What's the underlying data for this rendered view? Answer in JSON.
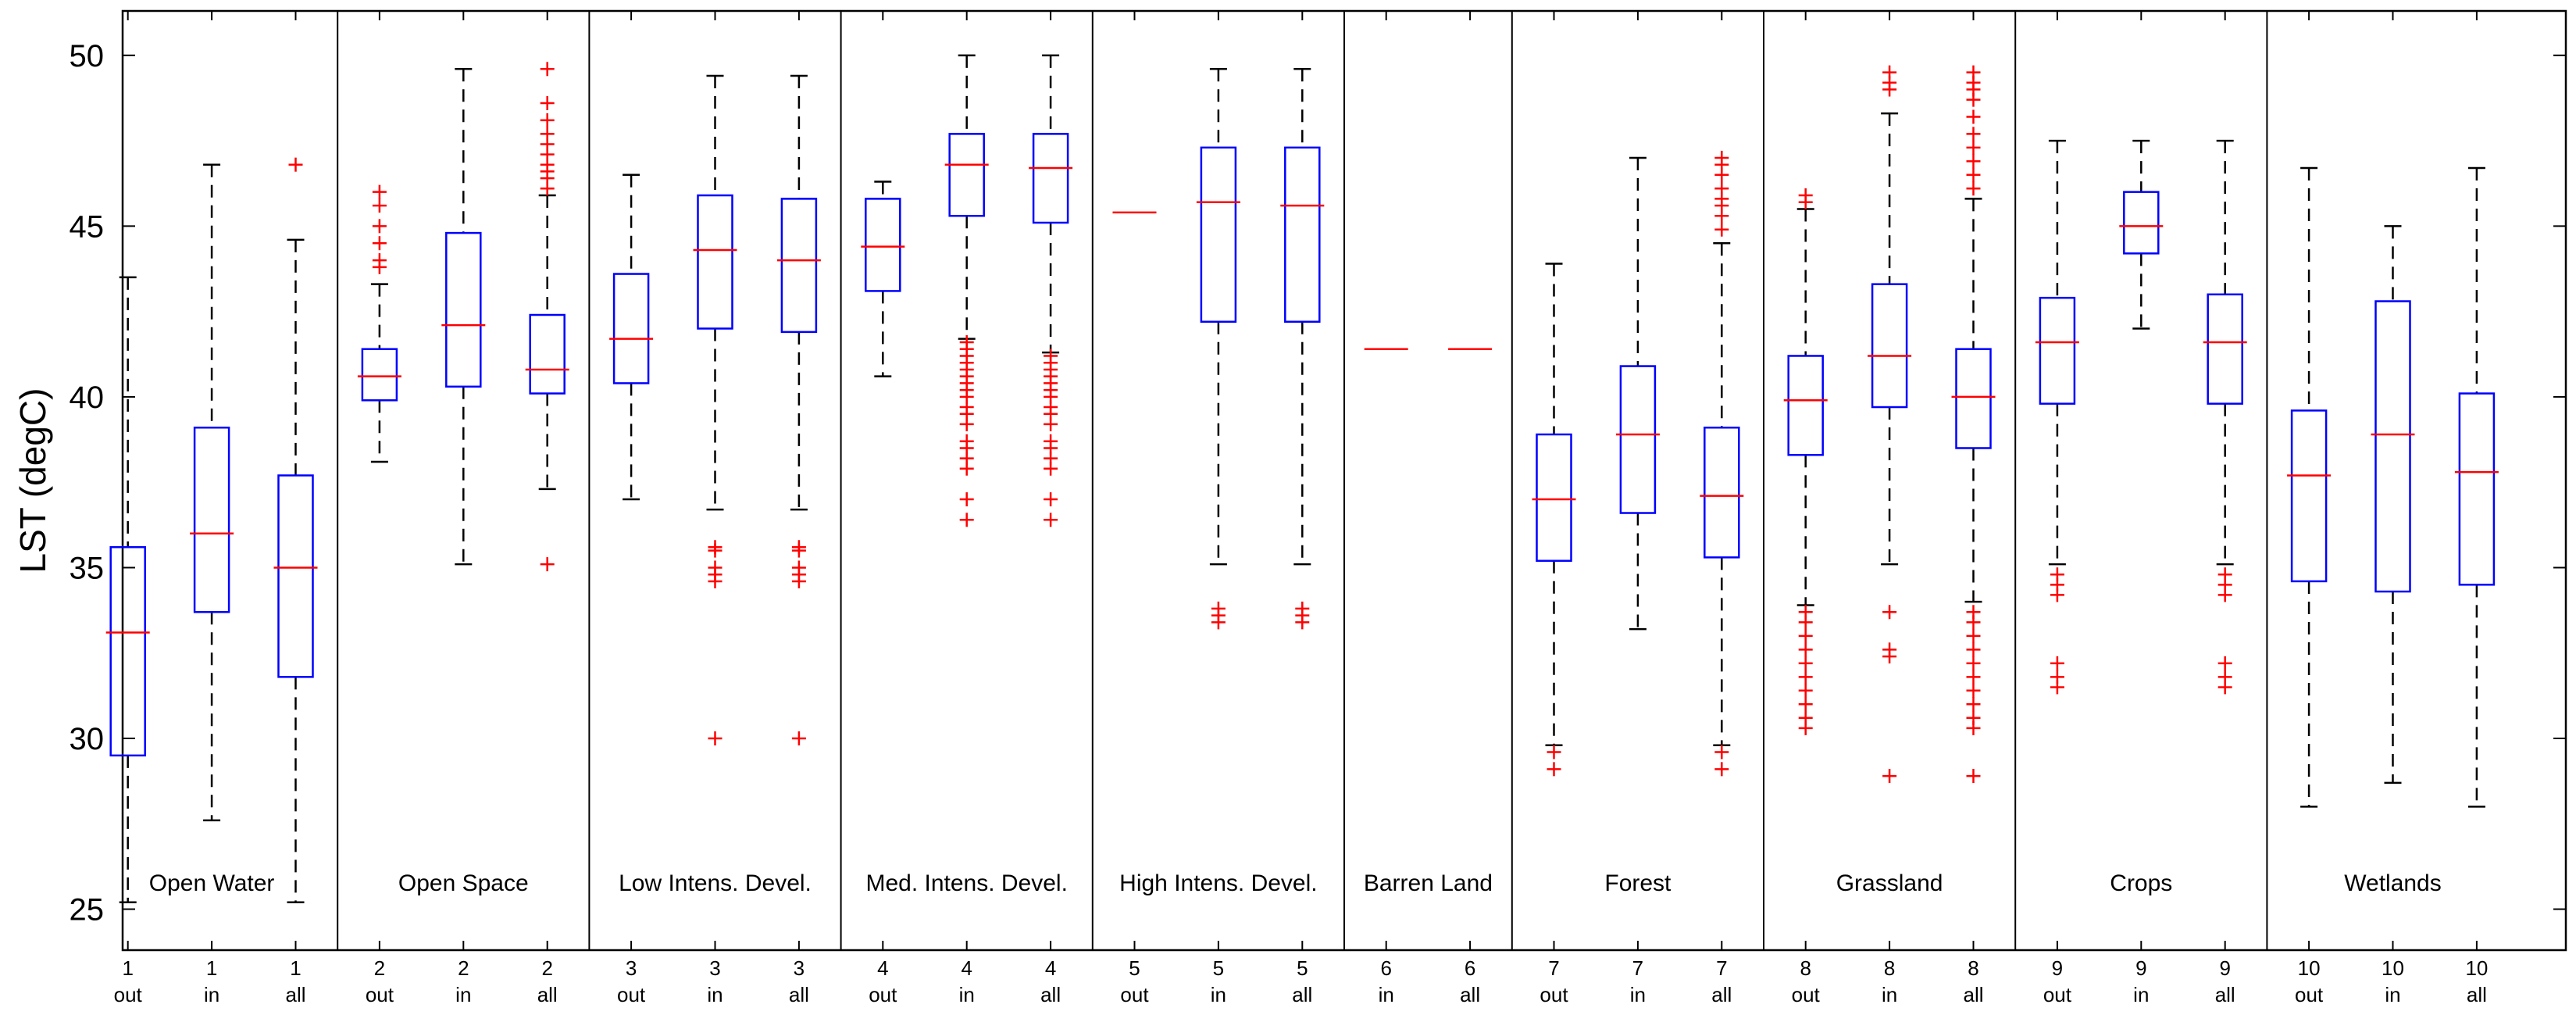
{
  "chart_data": {
    "type": "boxplot",
    "ylabel": "LST (degC)",
    "ylim": [
      23.8,
      51.3
    ],
    "yticks": [
      25,
      30,
      35,
      40,
      45,
      50
    ],
    "colors": {
      "box": "#0000ff",
      "median": "#ff0000",
      "whisker": "#000000",
      "outlier": "#ff0000",
      "frame": "#000000"
    },
    "panels": [
      {
        "label": "Open Water",
        "boxes": [
          {
            "cat": "1",
            "sub": "out",
            "q1": 29.5,
            "med": 33.1,
            "q3": 35.6,
            "low": 25.2,
            "high": 43.5,
            "outliers": []
          },
          {
            "cat": "1",
            "sub": "in",
            "q1": 33.7,
            "med": 36.0,
            "q3": 39.1,
            "low": 27.6,
            "high": 46.8,
            "outliers": []
          },
          {
            "cat": "1",
            "sub": "all",
            "q1": 31.8,
            "med": 35.0,
            "q3": 37.7,
            "low": 25.2,
            "high": 44.6,
            "outliers": [
              46.8
            ]
          }
        ]
      },
      {
        "label": "Open Space",
        "boxes": [
          {
            "cat": "2",
            "sub": "out",
            "q1": 39.9,
            "med": 40.6,
            "q3": 41.4,
            "low": 38.1,
            "high": 43.3,
            "outliers": [
              43.8,
              44.0,
              44.5,
              45.0,
              45.6,
              46.0
            ]
          },
          {
            "cat": "2",
            "sub": "in",
            "q1": 40.3,
            "med": 42.1,
            "q3": 44.8,
            "low": 35.1,
            "high": 49.6,
            "outliers": []
          },
          {
            "cat": "2",
            "sub": "all",
            "q1": 40.1,
            "med": 40.8,
            "q3": 42.4,
            "low": 37.3,
            "high": 45.9,
            "outliers": [
              35.1,
              46.1,
              46.4,
              46.6,
              46.8,
              47.1,
              47.4,
              47.7,
              48.1,
              48.6,
              49.6
            ]
          }
        ]
      },
      {
        "label": "Low Intens. Devel.",
        "boxes": [
          {
            "cat": "3",
            "sub": "out",
            "q1": 40.4,
            "med": 41.7,
            "q3": 43.6,
            "low": 37.0,
            "high": 46.5,
            "outliers": []
          },
          {
            "cat": "3",
            "sub": "in",
            "q1": 42.0,
            "med": 44.3,
            "q3": 45.9,
            "low": 36.7,
            "high": 49.4,
            "outliers": [
              30.0,
              34.6,
              34.8,
              35.0,
              35.5,
              35.6
            ]
          },
          {
            "cat": "3",
            "sub": "all",
            "q1": 41.9,
            "med": 44.0,
            "q3": 45.8,
            "low": 36.7,
            "high": 49.4,
            "outliers": [
              30.0,
              34.6,
              34.8,
              35.0,
              35.5,
              35.6
            ]
          }
        ]
      },
      {
        "label": "Med. Intens. Devel.",
        "boxes": [
          {
            "cat": "4",
            "sub": "out",
            "q1": 43.1,
            "med": 44.4,
            "q3": 45.8,
            "low": 40.6,
            "high": 46.3,
            "outliers": []
          },
          {
            "cat": "4",
            "sub": "in",
            "q1": 45.3,
            "med": 46.8,
            "q3": 47.7,
            "low": 41.7,
            "high": 50.0,
            "outliers": [
              36.4,
              37.0,
              37.9,
              38.2,
              38.5,
              38.7,
              39.2,
              39.5,
              39.7,
              40.0,
              40.2,
              40.4,
              40.6,
              40.8,
              41.0,
              41.2,
              41.4,
              41.6
            ]
          },
          {
            "cat": "4",
            "sub": "all",
            "q1": 45.1,
            "med": 46.7,
            "q3": 47.7,
            "low": 41.3,
            "high": 50.0,
            "outliers": [
              36.4,
              37.0,
              37.9,
              38.2,
              38.5,
              38.7,
              39.2,
              39.5,
              39.7,
              40.0,
              40.2,
              40.4,
              40.6,
              40.8,
              41.0,
              41.2
            ]
          }
        ]
      },
      {
        "label": "High Intens. Devel.",
        "boxes": [
          {
            "cat": "5",
            "sub": "out",
            "q1": 45.4,
            "med": 45.4,
            "q3": 45.4,
            "low": 45.4,
            "high": 45.4,
            "outliers": []
          },
          {
            "cat": "5",
            "sub": "in",
            "q1": 42.2,
            "med": 45.7,
            "q3": 47.3,
            "low": 35.1,
            "high": 49.6,
            "outliers": [
              33.4,
              33.6,
              33.8
            ]
          },
          {
            "cat": "5",
            "sub": "all",
            "q1": 42.2,
            "med": 45.6,
            "q3": 47.3,
            "low": 35.1,
            "high": 49.6,
            "outliers": [
              33.4,
              33.6,
              33.8
            ]
          }
        ]
      },
      {
        "label": "Barren Land",
        "boxes": [
          {
            "cat": "6",
            "sub": "in",
            "q1": 41.4,
            "med": 41.4,
            "q3": 41.4,
            "low": 41.4,
            "high": 41.4,
            "outliers": []
          },
          {
            "cat": "6",
            "sub": "all",
            "q1": 41.4,
            "med": 41.4,
            "q3": 41.4,
            "low": 41.4,
            "high": 41.4,
            "outliers": []
          }
        ]
      },
      {
        "label": "Forest",
        "boxes": [
          {
            "cat": "7",
            "sub": "out",
            "q1": 35.2,
            "med": 37.0,
            "q3": 38.9,
            "low": 29.8,
            "high": 43.9,
            "outliers": [
              29.1,
              29.6
            ]
          },
          {
            "cat": "7",
            "sub": "in",
            "q1": 36.6,
            "med": 38.9,
            "q3": 40.9,
            "low": 33.2,
            "high": 47.0,
            "outliers": []
          },
          {
            "cat": "7",
            "sub": "all",
            "q1": 35.3,
            "med": 37.1,
            "q3": 39.1,
            "low": 29.8,
            "high": 44.5,
            "outliers": [
              29.1,
              29.6,
              44.9,
              45.3,
              45.6,
              45.8,
              46.1,
              46.5,
              46.8,
              47.0
            ]
          }
        ]
      },
      {
        "label": "Grassland",
        "boxes": [
          {
            "cat": "8",
            "sub": "out",
            "q1": 38.3,
            "med": 39.9,
            "q3": 41.2,
            "low": 33.9,
            "high": 45.5,
            "outliers": [
              30.3,
              30.6,
              31.0,
              31.4,
              31.8,
              32.2,
              32.6,
              33.0,
              33.4,
              33.7,
              45.7,
              45.9
            ]
          },
          {
            "cat": "8",
            "sub": "in",
            "q1": 39.7,
            "med": 41.2,
            "q3": 43.3,
            "low": 35.1,
            "high": 48.3,
            "outliers": [
              28.9,
              32.4,
              32.6,
              33.7,
              49.0,
              49.2,
              49.5
            ]
          },
          {
            "cat": "8",
            "sub": "all",
            "q1": 38.5,
            "med": 40.0,
            "q3": 41.4,
            "low": 34.0,
            "high": 45.8,
            "outliers": [
              28.9,
              30.3,
              30.6,
              31.0,
              31.4,
              31.8,
              32.2,
              32.6,
              33.0,
              33.4,
              33.7,
              46.1,
              46.5,
              46.9,
              47.3,
              47.7,
              48.2,
              48.7,
              49.0,
              49.2,
              49.5
            ]
          }
        ]
      },
      {
        "label": "Crops",
        "boxes": [
          {
            "cat": "9",
            "sub": "out",
            "q1": 39.8,
            "med": 41.6,
            "q3": 42.9,
            "low": 35.1,
            "high": 47.5,
            "outliers": [
              31.5,
              31.8,
              32.2,
              34.2,
              34.5,
              34.8
            ]
          },
          {
            "cat": "9",
            "sub": "in",
            "q1": 44.2,
            "med": 45.0,
            "q3": 46.0,
            "low": 42.0,
            "high": 47.5,
            "outliers": []
          },
          {
            "cat": "9",
            "sub": "all",
            "q1": 39.8,
            "med": 41.6,
            "q3": 43.0,
            "low": 35.1,
            "high": 47.5,
            "outliers": [
              31.5,
              31.8,
              32.2,
              34.2,
              34.5,
              34.8
            ]
          }
        ]
      },
      {
        "label": "Wetlands",
        "boxes": [
          {
            "cat": "10",
            "sub": "out",
            "q1": 34.6,
            "med": 37.7,
            "q3": 39.6,
            "low": 28.0,
            "high": 46.7,
            "outliers": []
          },
          {
            "cat": "10",
            "sub": "in",
            "q1": 34.3,
            "med": 38.9,
            "q3": 42.8,
            "low": 28.7,
            "high": 45.0,
            "outliers": []
          },
          {
            "cat": "10",
            "sub": "all",
            "q1": 34.5,
            "med": 37.8,
            "q3": 40.1,
            "low": 28.0,
            "high": 46.7,
            "outliers": []
          }
        ]
      }
    ]
  }
}
